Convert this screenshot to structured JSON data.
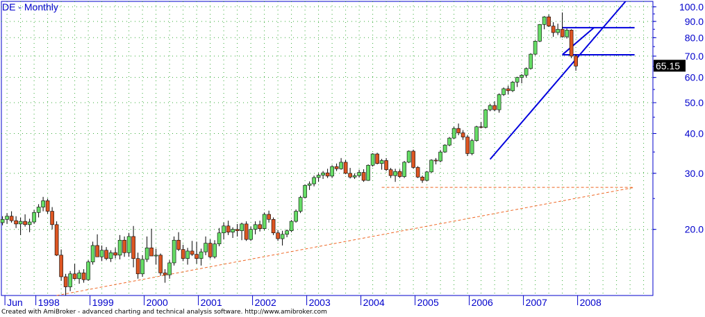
{
  "title": "DE - Monthly",
  "footer": "Created with AmiBroker - advanced charting and technical analysis software. http://www.amibroker.com",
  "colors": {
    "up": "#66dd66",
    "down": "#dd5522",
    "wick": "#000000",
    "axis": "#0000cc",
    "grid": "#33aa33",
    "trend_blue": "#0000dd",
    "trend_orange": "#ee6622",
    "last_label_bg": "#000000",
    "last_label_fg": "#ffffff"
  },
  "chart_data": {
    "type": "candlestick",
    "y_scale": "log",
    "ylim": [
      12.4,
      104
    ],
    "y_ticks": [
      "100.0",
      "90.0",
      "80.0",
      "70.0",
      "60.0",
      "50.0",
      "40.0",
      "30.0",
      "20.0"
    ],
    "x_labels": [
      "Jun",
      "1998",
      "1999",
      "2000",
      "2001",
      "2002",
      "2003",
      "2004",
      "2005",
      "2006",
      "2007",
      "2008"
    ],
    "last_value": "65.15",
    "start": "1997-06",
    "ohlc": [
      [
        21.0,
        22.0,
        20.6,
        21.5
      ],
      [
        21.5,
        22.5,
        20.8,
        22.0
      ],
      [
        22.0,
        22.8,
        21.0,
        21.3
      ],
      [
        21.3,
        22.0,
        20.2,
        20.8
      ],
      [
        20.8,
        21.8,
        19.2,
        21.2
      ],
      [
        21.2,
        22.3,
        20.4,
        20.7
      ],
      [
        20.7,
        21.6,
        19.6,
        21.1
      ],
      [
        21.1,
        23.0,
        20.8,
        22.6
      ],
      [
        22.6,
        24.0,
        21.8,
        23.5
      ],
      [
        23.5,
        25.3,
        22.8,
        24.6
      ],
      [
        24.6,
        25.0,
        22.4,
        22.8
      ],
      [
        22.8,
        23.5,
        20.0,
        20.7
      ],
      [
        20.7,
        21.2,
        16.5,
        16.6
      ],
      [
        16.6,
        17.3,
        13.8,
        14.2
      ],
      [
        14.2,
        14.5,
        12.4,
        13.2
      ],
      [
        13.2,
        14.8,
        12.8,
        14.5
      ],
      [
        14.5,
        15.6,
        13.9,
        14.0
      ],
      [
        14.0,
        14.9,
        13.5,
        14.6
      ],
      [
        14.6,
        15.0,
        13.6,
        13.9
      ],
      [
        13.9,
        16.0,
        13.8,
        15.8
      ],
      [
        15.8,
        18.3,
        15.5,
        17.8
      ],
      [
        17.8,
        19.3,
        16.6,
        16.4
      ],
      [
        16.4,
        17.8,
        15.9,
        17.2
      ],
      [
        17.2,
        17.6,
        16.0,
        16.2
      ],
      [
        16.2,
        17.2,
        15.8,
        16.9
      ],
      [
        16.9,
        17.5,
        16.2,
        16.6
      ],
      [
        16.6,
        19.2,
        16.1,
        18.5
      ],
      [
        18.5,
        19.0,
        16.4,
        16.9
      ],
      [
        16.9,
        19.5,
        16.4,
        19.0
      ],
      [
        19.0,
        20.5,
        15.2,
        16.2
      ],
      [
        16.2,
        16.9,
        14.0,
        14.5
      ],
      [
        14.5,
        16.6,
        14.2,
        16.1
      ],
      [
        16.1,
        19.0,
        15.8,
        17.5
      ],
      [
        17.5,
        20.1,
        16.7,
        16.5
      ],
      [
        16.5,
        17.4,
        15.5,
        16.6
      ],
      [
        16.6,
        16.8,
        14.3,
        14.6
      ],
      [
        14.6,
        15.0,
        13.6,
        14.4
      ],
      [
        14.4,
        16.0,
        14.0,
        15.7
      ],
      [
        15.7,
        19.0,
        15.4,
        18.5
      ],
      [
        18.5,
        19.6,
        17.1,
        17.3
      ],
      [
        17.3,
        17.9,
        15.9,
        16.2
      ],
      [
        16.2,
        17.5,
        15.5,
        17.1
      ],
      [
        17.1,
        18.4,
        16.5,
        16.7
      ],
      [
        16.7,
        18.3,
        15.6,
        16.2
      ],
      [
        16.2,
        17.4,
        15.4,
        17.0
      ],
      [
        17.0,
        19.0,
        16.6,
        18.1
      ],
      [
        18.1,
        18.6,
        16.2,
        16.4
      ],
      [
        16.4,
        18.5,
        16.2,
        18.0
      ],
      [
        18.0,
        20.2,
        17.7,
        19.5
      ],
      [
        19.5,
        21.0,
        18.6,
        20.5
      ],
      [
        20.5,
        21.3,
        19.2,
        19.6
      ],
      [
        19.6,
        20.3,
        18.8,
        20.0
      ],
      [
        20.0,
        20.8,
        19.0,
        19.8
      ],
      [
        19.8,
        21.0,
        18.5,
        20.8
      ],
      [
        20.8,
        21.2,
        18.4,
        18.6
      ],
      [
        18.6,
        20.4,
        18.4,
        20.0
      ],
      [
        20.0,
        21.2,
        19.3,
        20.7
      ],
      [
        20.7,
        21.3,
        19.7,
        20.1
      ],
      [
        20.1,
        22.6,
        19.9,
        22.3
      ],
      [
        22.3,
        22.9,
        21.0,
        21.5
      ],
      [
        21.5,
        21.8,
        19.2,
        19.5
      ],
      [
        19.5,
        19.9,
        18.4,
        18.7
      ],
      [
        18.7,
        19.8,
        17.8,
        19.3
      ],
      [
        19.3,
        20.0,
        18.9,
        19.8
      ],
      [
        19.8,
        21.4,
        19.6,
        21.2
      ],
      [
        21.2,
        23.1,
        21.0,
        22.8
      ],
      [
        22.8,
        25.5,
        22.5,
        25.2
      ],
      [
        25.2,
        27.7,
        25.0,
        27.5
      ],
      [
        27.5,
        28.3,
        26.6,
        27.8
      ],
      [
        27.8,
        29.5,
        27.3,
        29.1
      ],
      [
        29.1,
        30.0,
        28.2,
        29.6
      ],
      [
        29.6,
        30.5,
        28.8,
        30.1
      ],
      [
        30.1,
        31.0,
        29.0,
        29.4
      ],
      [
        29.4,
        31.8,
        29.0,
        31.5
      ],
      [
        31.5,
        32.2,
        30.5,
        31.0
      ],
      [
        31.0,
        33.5,
        30.8,
        32.5
      ],
      [
        32.5,
        33.0,
        29.8,
        30.0
      ],
      [
        30.0,
        31.2,
        28.9,
        29.2
      ],
      [
        29.2,
        30.0,
        28.8,
        29.5
      ],
      [
        29.5,
        30.8,
        29.1,
        30.2
      ],
      [
        30.2,
        30.9,
        28.2,
        28.5
      ],
      [
        28.5,
        32.0,
        28.4,
        31.8
      ],
      [
        31.8,
        34.7,
        31.5,
        34.5
      ],
      [
        34.5,
        34.8,
        32.0,
        32.2
      ],
      [
        32.2,
        33.3,
        30.8,
        32.9
      ],
      [
        32.9,
        33.5,
        30.5,
        30.8
      ],
      [
        30.8,
        31.2,
        29.0,
        29.5
      ],
      [
        29.5,
        31.0,
        28.2,
        30.4
      ],
      [
        30.4,
        30.9,
        29.0,
        29.3
      ],
      [
        29.3,
        32.8,
        29.0,
        32.5
      ],
      [
        32.5,
        35.4,
        32.3,
        35.2
      ],
      [
        35.2,
        35.6,
        31.0,
        31.3
      ],
      [
        31.3,
        31.6,
        29.0,
        29.2
      ],
      [
        29.2,
        29.5,
        28.0,
        28.5
      ],
      [
        28.5,
        30.5,
        28.3,
        30.3
      ],
      [
        30.3,
        33.2,
        30.1,
        33.0
      ],
      [
        33.0,
        33.5,
        32.0,
        32.8
      ],
      [
        32.8,
        35.5,
        32.5,
        35.0
      ],
      [
        35.0,
        37.0,
        34.8,
        36.8
      ],
      [
        36.8,
        39.0,
        36.5,
        38.7
      ],
      [
        38.7,
        42.0,
        38.5,
        41.5
      ],
      [
        41.5,
        43.0,
        39.5,
        40.2
      ],
      [
        40.2,
        41.0,
        38.2,
        39.0
      ],
      [
        39.0,
        39.5,
        34.0,
        34.6
      ],
      [
        34.6,
        38.5,
        34.2,
        38.0
      ],
      [
        38.0,
        42.3,
        37.7,
        42.0
      ],
      [
        42.0,
        43.5,
        41.5,
        41.8
      ],
      [
        41.8,
        47.8,
        41.5,
        47.5
      ],
      [
        47.5,
        49.6,
        47.0,
        49.0
      ],
      [
        49.0,
        50.5,
        47.0,
        47.5
      ],
      [
        47.5,
        53.5,
        46.5,
        53.0
      ],
      [
        53.0,
        55.8,
        52.5,
        55.3
      ],
      [
        55.3,
        56.5,
        53.0,
        54.5
      ],
      [
        54.5,
        58.5,
        54.0,
        58.0
      ],
      [
        58.0,
        60.3,
        56.0,
        60.0
      ],
      [
        60.0,
        61.5,
        57.5,
        61.0
      ],
      [
        61.0,
        64.5,
        60.0,
        64.0
      ],
      [
        64.0,
        71.5,
        63.5,
        71.0
      ],
      [
        71.0,
        78.5,
        70.5,
        78.0
      ],
      [
        78.0,
        88.3,
        77.5,
        88.0
      ],
      [
        88.0,
        93.5,
        85.0,
        93.0
      ],
      [
        93.0,
        94.5,
        86.5,
        87.0
      ],
      [
        87.0,
        89.5,
        80.5,
        83.0
      ],
      [
        83.0,
        88.5,
        81.5,
        85.0
      ],
      [
        85.0,
        96.0,
        80.0,
        80.5
      ],
      [
        80.5,
        85.5,
        79.5,
        84.5
      ],
      [
        84.5,
        85.0,
        69.0,
        70.0
      ],
      [
        70.0,
        71.0,
        63.0,
        65.15
      ]
    ],
    "lines": [
      {
        "color": "blue",
        "x0": "2006-06",
        "y0": 33.2,
        "x1": "2008-12",
        "y1": 104
      },
      {
        "color": "blue",
        "x0": "2007-10",
        "y0": 70.7,
        "x1": "2008-05",
        "y1": 86.0
      },
      {
        "color": "blue",
        "x0": "2007-10",
        "y0": 86.0,
        "x1": "2009-02",
        "y1": 86.0
      },
      {
        "color": "blue",
        "x0": "2007-10",
        "y0": 70.7,
        "x1": "2009-02",
        "y1": 70.7
      },
      {
        "color": "orange",
        "x0": "1998-06",
        "y0": 12.4,
        "x1": "2009-02",
        "y1": 27.1
      },
      {
        "color": "orange",
        "x0": "2004-06",
        "y0": 27.1,
        "x1": "2009-02",
        "y1": 27.1
      }
    ]
  }
}
